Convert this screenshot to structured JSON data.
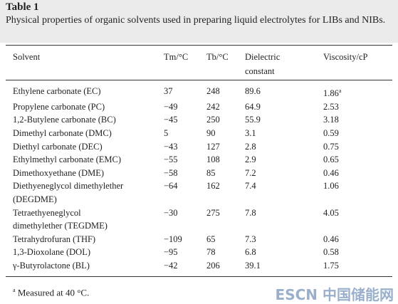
{
  "header": {
    "title": "Table 1",
    "caption": "Physical properties of organic solvents used in preparing liquid electrolytes for LIBs and NIBs."
  },
  "table": {
    "columns": [
      "Solvent",
      "Tm/°C",
      "Tb/°C",
      "Dielectric\nconstant",
      "Viscosity/cP"
    ],
    "rows": [
      [
        "Ethylene carbonate (EC)",
        "37",
        "248",
        "89.6",
        "1.86"
      ],
      [
        "Propylene carbonate (PC)",
        "−49",
        "242",
        "64.9",
        "2.53"
      ],
      [
        "1,2-Butylene carbonate (BC)",
        "−45",
        "250",
        "55.9",
        "3.18"
      ],
      [
        "Dimethyl carbonate (DMC)",
        "5",
        "90",
        "3.1",
        "0.59"
      ],
      [
        "Diethyl carbonate (DEC)",
        "−43",
        "127",
        "2.8",
        "0.75"
      ],
      [
        "Ethylmethyl carbonate (EMC)",
        "−55",
        "108",
        "2.9",
        "0.65"
      ],
      [
        "Dimethoxyethane (DME)",
        "−58",
        "85",
        "7.2",
        "0.46"
      ],
      [
        "Diethyeneglycol dimethylether\n(DEGDME)",
        "−64",
        "162",
        "7.4",
        "1.06"
      ],
      [
        "Tetraethyeneglycol\ndimethylether (TEGDME)",
        "−30",
        "275",
        "7.8",
        "4.05"
      ],
      [
        "Tetrahydrofuran (THF)",
        "−109",
        "65",
        "7.3",
        "0.46"
      ],
      [
        "1,3-Dioxolane (DOL)",
        "−95",
        "78",
        "6.8",
        "0.58"
      ],
      [
        "γ-Butyrolactone (BL)",
        "−42",
        "206",
        "39.1",
        "1.75"
      ]
    ],
    "note_mark": "a"
  },
  "footnote": {
    "mark": "a",
    "text": "Measured at 40 °C."
  },
  "watermark": "ESCN 中国储能网"
}
